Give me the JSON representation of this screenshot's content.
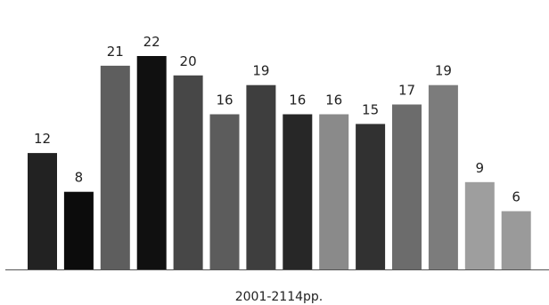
{
  "chart_data": {
    "type": "bar",
    "title": "",
    "xlabel": "2001-2114pp.",
    "ylabel": "",
    "categories": [
      "",
      "",
      "",
      "",
      "",
      "",
      "",
      "",
      "",
      "",
      "",
      "",
      "",
      ""
    ],
    "values": [
      12,
      8,
      21,
      22,
      20,
      16,
      19,
      16,
      16,
      15,
      17,
      19,
      9,
      6
    ],
    "colors": [
      "#222222",
      "#0c0c0c",
      "#5e5e5e",
      "#101010",
      "#474747",
      "#5c5c5c",
      "#3e3e3e",
      "#272727",
      "#8a8a8a",
      "#313131",
      "#6c6c6c",
      "#7c7c7c",
      "#9e9e9e",
      "#9a9a9a"
    ],
    "ylim": [
      0,
      22
    ],
    "grid": false,
    "legend": "none"
  }
}
